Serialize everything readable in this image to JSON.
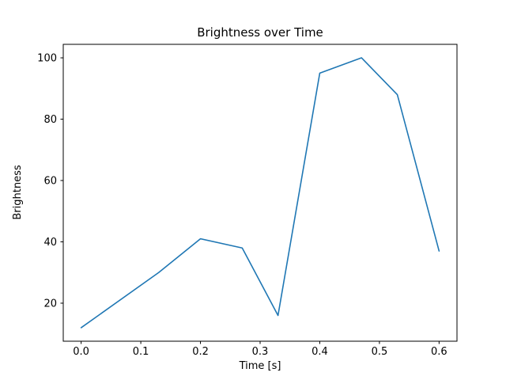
{
  "chart_data": {
    "type": "line",
    "title": "Brightness over Time",
    "xlabel": "Time [s]",
    "ylabel": "Brightness",
    "x": [
      0.0,
      0.13,
      0.2,
      0.27,
      0.33,
      0.4,
      0.47,
      0.53,
      0.6
    ],
    "y": [
      12,
      30,
      41,
      38,
      16,
      95,
      100,
      88,
      37
    ],
    "xlim": [
      -0.03,
      0.63
    ],
    "ylim": [
      7.6,
      104.4
    ],
    "xticks": [
      0.0,
      0.1,
      0.2,
      0.3,
      0.4,
      0.5,
      0.6
    ],
    "yticks": [
      20,
      40,
      60,
      80,
      100
    ],
    "line_color": "#1f77b4",
    "grid": false,
    "legend_position": "none"
  }
}
